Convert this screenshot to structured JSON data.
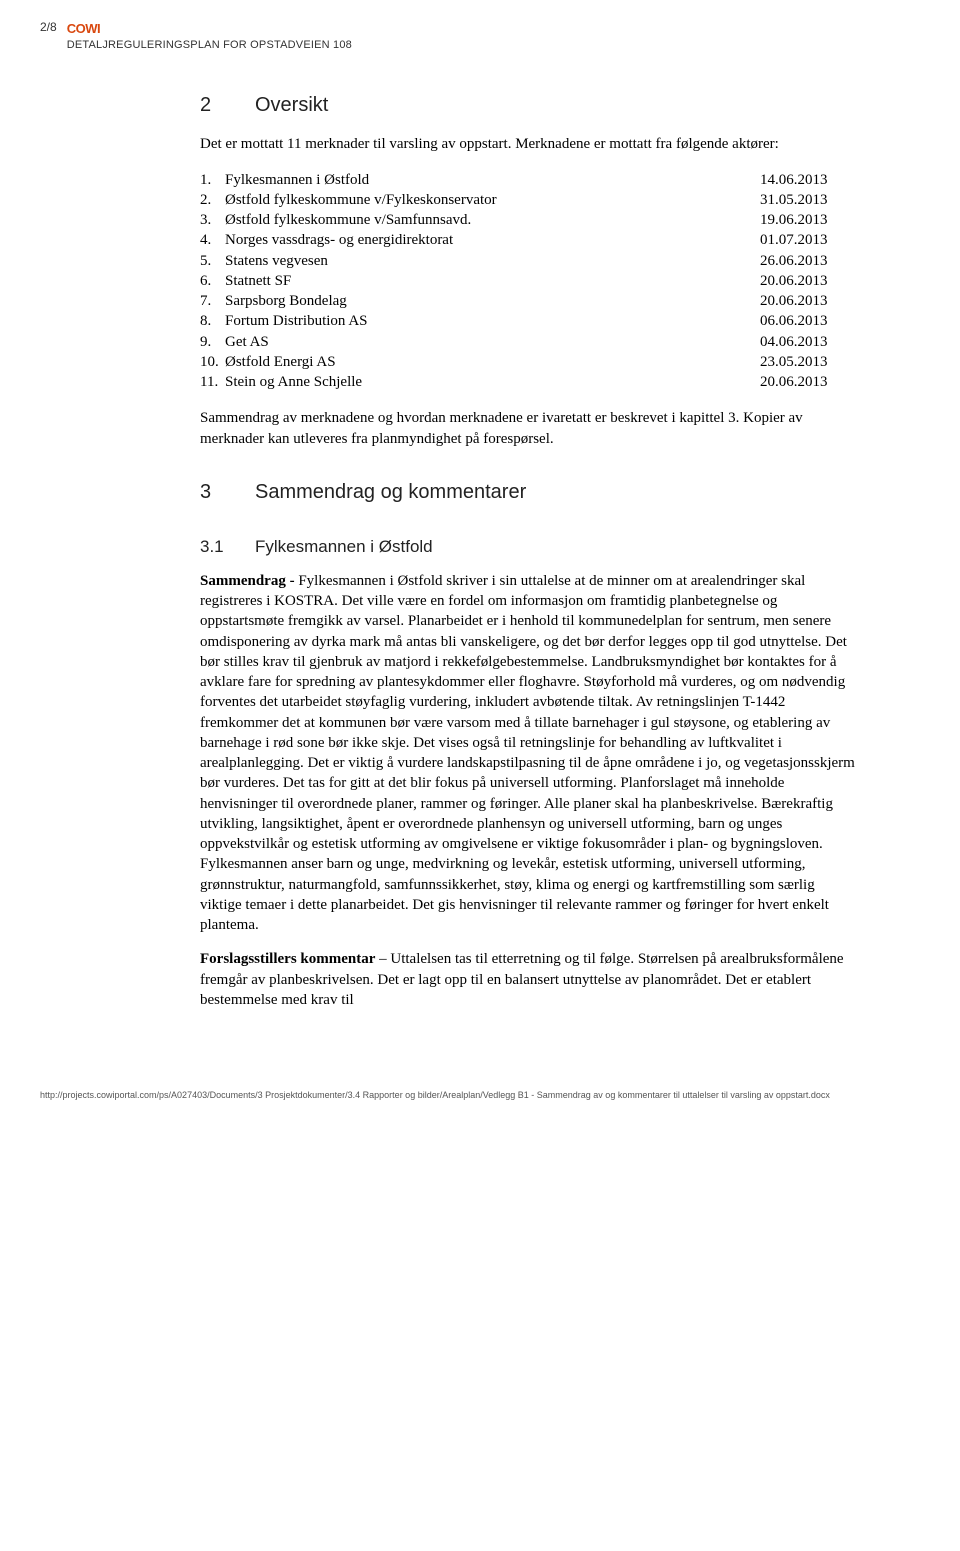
{
  "header": {
    "page_num": "2/8",
    "logo": "COWI",
    "doc_title": "DETALJREGULERINGSPLAN FOR OPSTADVEIEN 108"
  },
  "section2": {
    "num": "2",
    "title": "Oversikt",
    "intro": "Det er mottatt 11 merknader til varsling av oppstart. Merknadene er mottatt fra følgende aktører:",
    "items": [
      {
        "n": "1.",
        "label": "Fylkesmannen i Østfold",
        "date": "14.06.2013"
      },
      {
        "n": "2.",
        "label": "Østfold fylkeskommune v/Fylkeskonservator",
        "date": "31.05.2013"
      },
      {
        "n": "3.",
        "label": "Østfold fylkeskommune v/Samfunnsavd.",
        "date": "19.06.2013"
      },
      {
        "n": "4.",
        "label": "Norges vassdrags- og energidirektorat",
        "date": "01.07.2013"
      },
      {
        "n": "5.",
        "label": "Statens vegvesen",
        "date": "26.06.2013"
      },
      {
        "n": "6.",
        "label": "Statnett SF",
        "date": "20.06.2013"
      },
      {
        "n": "7.",
        "label": "Sarpsborg Bondelag",
        "date": "20.06.2013"
      },
      {
        "n": "8.",
        "label": "Fortum Distribution AS",
        "date": "06.06.2013"
      },
      {
        "n": "9.",
        "label": "Get AS",
        "date": "04.06.2013"
      },
      {
        "n": "10.",
        "label": "Østfold Energi AS",
        "date": "23.05.2013"
      },
      {
        "n": "11.",
        "label": "Stein og Anne Schjelle",
        "date": "20.06.2013"
      }
    ],
    "summary": "Sammendrag av merknadene og hvordan merknadene er ivaretatt er beskrevet i kapittel 3. Kopier av merknader kan utleveres fra planmyndighet på forespørsel."
  },
  "section3": {
    "num": "3",
    "title": "Sammendrag og kommentarer"
  },
  "section31": {
    "num": "3.1",
    "title": "Fylkesmannen i Østfold",
    "p1_bold": "Sammendrag -",
    "p1_rest": " Fylkesmannen i Østfold skriver i sin uttalelse at de minner om at arealendringer skal registreres i KOSTRA. Det ville være en fordel om informasjon om framtidig planbetegnelse og oppstartsmøte fremgikk av varsel. Planarbeidet er i henhold til kommunedelplan for sentrum, men senere omdisponering av dyrka mark må antas bli vanskeligere, og det bør derfor legges opp til god utnyttelse. Det bør stilles krav til gjenbruk av matjord i rekkefølgebestemmelse. Landbruksmyndighet bør kontaktes for å avklare fare for spredning av plantesykdommer eller floghavre. Støyforhold må vurderes, og om nødvendig forventes det utarbeidet støyfaglig vurdering, inkludert avbøtende tiltak. Av retningslinjen T-1442 fremkommer det at kommunen bør være varsom med å tillate barnehager i gul støysone, og etablering av barnehage i rød sone bør ikke skje. Det vises også til retningslinje for behandling av luftkvalitet i arealplanlegging. Det er viktig å vurdere landskapstilpasning til de åpne områdene i jo, og vegetasjonsskjerm bør vurderes. Det tas for gitt at det blir fokus på universell utforming. Planforslaget må inneholde henvisninger til overordnede planer, rammer og føringer. Alle planer skal ha planbeskrivelse. Bærekraftig utvikling, langsiktighet, åpent er overordnede planhensyn og universell utforming, barn og unges oppvekstvilkår og estetisk utforming av omgivelsene er viktige fokusområder i plan- og bygningsloven. Fylkesmannen anser barn og unge, medvirkning og levekår, estetisk utforming, universell utforming, grønnstruktur, naturmangfold, samfunnssikkerhet, støy, klima og energi og kartfremstilling som særlig viktige temaer i dette planarbeidet. Det gis henvisninger til relevante rammer og føringer for hvert enkelt plantema.",
    "p2_bold": "Forslagsstillers kommentar",
    "p2_rest": " – Uttalelsen tas til etterretning og til følge. Størrelsen på arealbruksformålene fremgår av planbeskrivelsen. Det er lagt opp til en balansert utnyttelse av planområdet. Det er etablert bestemmelse med krav til"
  },
  "footer": {
    "text": "http://projects.cowiportal.com/ps/A027403/Documents/3 Prosjektdokumenter/3.4 Rapporter og bilder/Arealplan/Vedlegg B1 - Sammendrag av og kommentarer til uttalelser til varsling av oppstart.docx"
  }
}
